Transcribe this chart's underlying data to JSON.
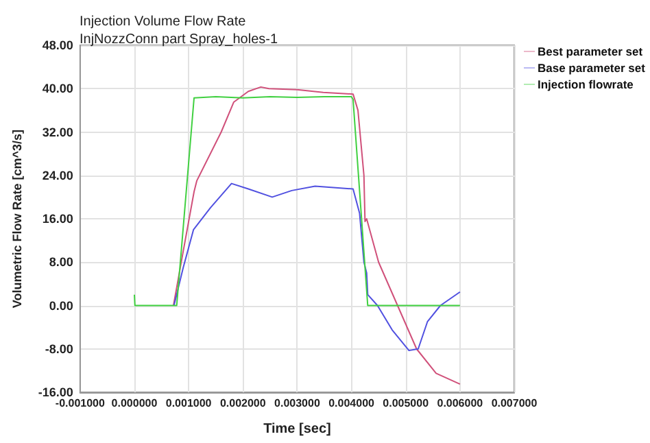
{
  "chart_data": {
    "type": "line",
    "title": "Injection Volume Flow Rate",
    "subtitle": "InjNozzConn part Spray_holes-1",
    "xlabel": "Time [sec]",
    "ylabel": "Volumetric Flow Rate [cm^3/s]",
    "xlim": [
      -0.001,
      0.007
    ],
    "xticks": [
      {
        "value": -0.001,
        "label": "-0.001000"
      },
      {
        "value": 0,
        "label": "0.000000"
      },
      {
        "value": 0.001,
        "label": "0.001000"
      },
      {
        "value": 0.002,
        "label": "0.002000"
      },
      {
        "value": 0.003,
        "label": "0.003000"
      },
      {
        "value": 0.004,
        "label": "0.004000"
      },
      {
        "value": 0.005,
        "label": "0.005000"
      },
      {
        "value": 0.006,
        "label": "0.006000"
      },
      {
        "value": 0.007,
        "label": "0.007000"
      }
    ],
    "ylim": [
      -16,
      48
    ],
    "yticks": [
      {
        "value": -16,
        "label": "-16.00"
      },
      {
        "value": -8,
        "label": "-8.00"
      },
      {
        "value": 0,
        "label": "0.00"
      },
      {
        "value": 8,
        "label": "8.00"
      },
      {
        "value": 16,
        "label": "16.00"
      },
      {
        "value": 24,
        "label": "24.00"
      },
      {
        "value": 32,
        "label": "32.00"
      },
      {
        "value": 40,
        "label": "40.00"
      },
      {
        "value": 48,
        "label": "48.00"
      }
    ],
    "grid": true,
    "legend": "top right",
    "marker": "none",
    "line_style": "solid",
    "series": [
      {
        "name": "Best parameter set",
        "color": "#d0507a",
        "x": [
          0.00072,
          0.0009,
          0.0011,
          0.00115,
          0.0016,
          0.00183,
          0.0021,
          0.00233,
          0.00248,
          0.003,
          0.00348,
          0.00403,
          0.00412,
          0.00423,
          0.00425,
          0.00428,
          0.0045,
          0.00485,
          0.0052,
          0.00556,
          0.006
        ],
        "values": [
          0,
          10,
          21,
          23,
          32,
          37.5,
          39.5,
          40.3,
          40,
          39.8,
          39.3,
          39,
          36,
          24,
          15.5,
          16,
          8,
          0,
          -8,
          -12.5,
          -14.5
        ]
      },
      {
        "name": "Base parameter set",
        "color": "#5050e0",
        "x": [
          0.00073,
          0.0009,
          0.00109,
          0.0014,
          0.00179,
          0.0021,
          0.00254,
          0.0029,
          0.00333,
          0.00403,
          0.00415,
          0.00423,
          0.00428,
          0.0043,
          0.00448,
          0.00475,
          0.00506,
          0.00523,
          0.0054,
          0.00564,
          0.006
        ],
        "values": [
          0,
          7,
          14,
          18,
          22.5,
          21.5,
          20,
          21.2,
          22,
          21.5,
          17,
          8,
          6,
          2,
          0,
          -4.5,
          -8.3,
          -8,
          -3,
          0,
          2.5
        ]
      },
      {
        "name": "Injection flowrate",
        "color": "#40d040",
        "x": [
          0,
          1e-05,
          3e-05,
          0.0004,
          0.00078,
          0.0011,
          0.0015,
          0.002,
          0.0025,
          0.003,
          0.0035,
          0.004,
          0.00403,
          0.0043,
          0.0045,
          0.005,
          0.0055,
          0.006
        ],
        "values": [
          2,
          0,
          0,
          0,
          0,
          38.3,
          38.5,
          38.3,
          38.5,
          38.4,
          38.5,
          38.5,
          38,
          0,
          0,
          0,
          0,
          0
        ]
      }
    ]
  }
}
